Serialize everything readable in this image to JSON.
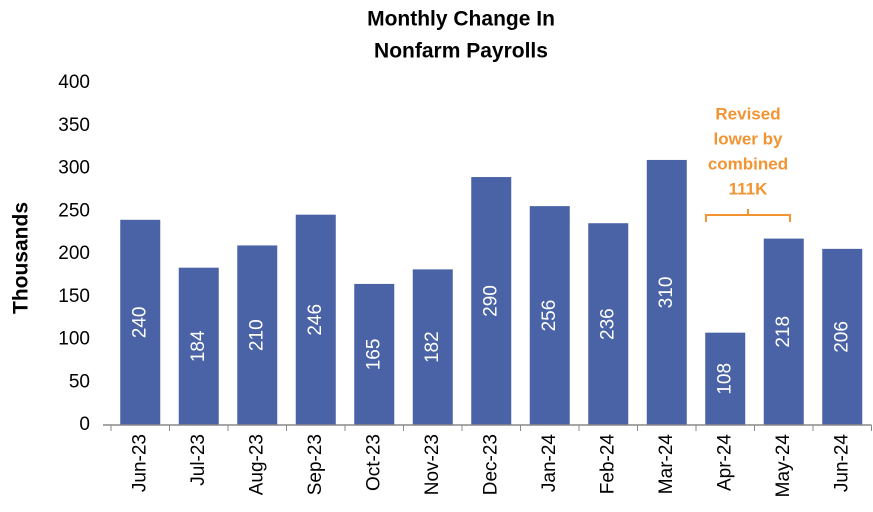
{
  "chart_data": {
    "type": "bar",
    "title": [
      "Monthly Change In",
      "Nonfarm Payrolls"
    ],
    "y_label": "Thousands",
    "categories": [
      "Jun-23",
      "Jul-23",
      "Aug-23",
      "Sep-23",
      "Oct-23",
      "Nov-23",
      "Dec-23",
      "Jan-24",
      "Feb-24",
      "Mar-24",
      "Apr-24",
      "May-24",
      "Jun-24"
    ],
    "values": [
      240,
      184,
      210,
      246,
      165,
      182,
      290,
      256,
      236,
      310,
      108,
      218,
      206
    ],
    "color": "#4a62a6",
    "ylim": [
      0,
      400
    ],
    "yticks": [
      0,
      50,
      100,
      150,
      200,
      250,
      300,
      350,
      400
    ],
    "grid": false,
    "annotation": {
      "lines": [
        "Revised",
        "lower by",
        "combined",
        "111K"
      ],
      "color": "#f39433"
    }
  }
}
